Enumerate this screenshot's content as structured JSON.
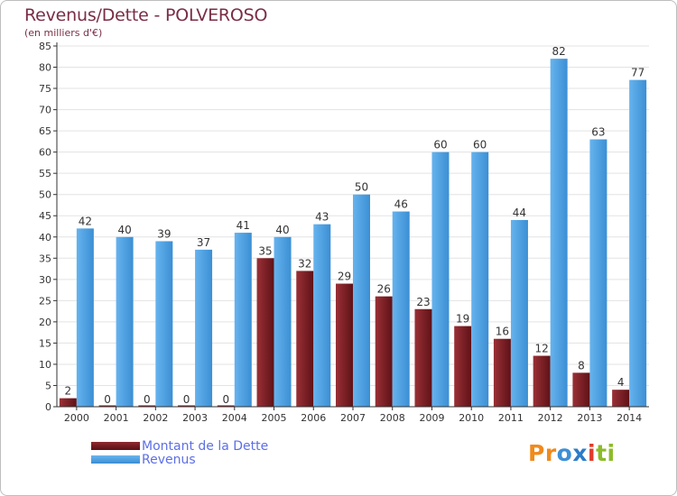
{
  "header": {
    "title": "Revenus/Dette - POLVEROSO",
    "subtitle": "(en milliers d'€)"
  },
  "legend": {
    "debt_label": "Montant de la Dette",
    "revenue_label": "Revenus"
  },
  "logo": {
    "letters": [
      "P",
      "r",
      "o",
      "x",
      "i",
      "t",
      "i"
    ],
    "colors": [
      "#f08a1c",
      "#f08a1c",
      "#3e8fd6",
      "#2c7cc8",
      "#e23a2a",
      "#8dbb2a",
      "#8dbb2a"
    ]
  },
  "colors": {
    "debt": "#7b1f24",
    "revenue": "#4a9fe0",
    "grid": "#e3e3e3",
    "axis": "#333333"
  },
  "chart_data": {
    "type": "bar",
    "title": "Revenus/Dette - POLVEROSO",
    "subtitle": "(en milliers d'€)",
    "categories": [
      "2000",
      "2001",
      "2002",
      "2003",
      "2004",
      "2005",
      "2006",
      "2007",
      "2008",
      "2009",
      "2010",
      "2011",
      "2012",
      "2013",
      "2014"
    ],
    "series": [
      {
        "name": "Montant de la Dette",
        "values": [
          2,
          0,
          0,
          0,
          0,
          35,
          32,
          29,
          26,
          23,
          19,
          16,
          12,
          8,
          4
        ]
      },
      {
        "name": "Revenus",
        "values": [
          42,
          40,
          39,
          37,
          41,
          40,
          43,
          50,
          46,
          60,
          60,
          44,
          82,
          63,
          77
        ]
      }
    ],
    "ylim": [
      0,
      85
    ],
    "yticks": [
      0,
      5,
      10,
      15,
      20,
      25,
      30,
      35,
      40,
      45,
      50,
      55,
      60,
      65,
      70,
      75,
      80,
      85
    ],
    "grid": true,
    "legend_position": "bottom-left"
  }
}
